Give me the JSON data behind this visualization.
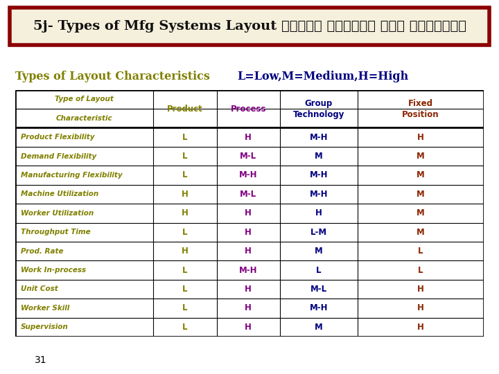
{
  "title": "5j- Types of Mfg Systems Layout أنواع مخططات نظم التصنيع",
  "title_bg": "#f5f0dc",
  "title_border": "#8b0000",
  "subtitle_green": "Types of Layout Characteristics ",
  "subtitle_blue": "L=Low,M=Medium,H=High",
  "col_colors": {
    "characteristic": "#808000",
    "product": "#808000",
    "process": "#800080",
    "group": "#000080",
    "fixed": "#8b2500"
  },
  "rows": [
    [
      "Product Flexibility",
      "L",
      "H",
      "M-H",
      "H"
    ],
    [
      "Demand Flexibility",
      "L",
      "M-L",
      "M",
      "M"
    ],
    [
      "Manufacturing Flexibility",
      "L",
      "M-H",
      "M-H",
      "M"
    ],
    [
      "Machine Utilization",
      "H",
      "M-L",
      "M-H",
      "M"
    ],
    [
      "Worker Utilization",
      "H",
      "H",
      "H",
      "M"
    ],
    [
      "Throughput Time",
      "L",
      "H",
      "L-M",
      "M"
    ],
    [
      "Prod. Rate",
      "H",
      "H",
      "M",
      "L"
    ],
    [
      "Work In-process",
      "L",
      "M-H",
      "L",
      "L"
    ],
    [
      "Unit Cost",
      "L",
      "H",
      "M-L",
      "H"
    ],
    [
      "Worker Skill",
      "L",
      "H",
      "M-H",
      "H"
    ],
    [
      "Supervision",
      "L",
      "H",
      "M",
      "H"
    ]
  ],
  "page_number": "31",
  "bg_color": "#ffffff"
}
